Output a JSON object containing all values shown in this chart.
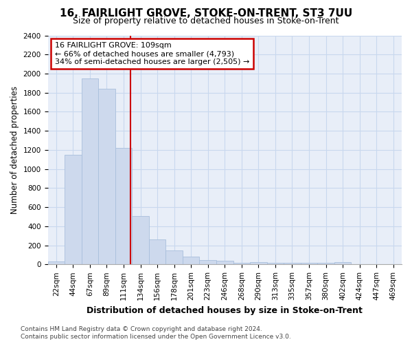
{
  "title": "16, FAIRLIGHT GROVE, STOKE-ON-TRENT, ST3 7UU",
  "subtitle": "Size of property relative to detached houses in Stoke-on-Trent",
  "xlabel": "Distribution of detached houses by size in Stoke-on-Trent",
  "ylabel": "Number of detached properties",
  "bins": [
    "22sqm",
    "44sqm",
    "67sqm",
    "89sqm",
    "111sqm",
    "134sqm",
    "156sqm",
    "178sqm",
    "201sqm",
    "223sqm",
    "246sqm",
    "268sqm",
    "290sqm",
    "313sqm",
    "335sqm",
    "357sqm",
    "380sqm",
    "402sqm",
    "424sqm",
    "447sqm",
    "469sqm"
  ],
  "values": [
    30,
    1150,
    1950,
    1840,
    1220,
    510,
    265,
    150,
    85,
    45,
    40,
    20,
    22,
    20,
    18,
    18,
    16,
    22,
    0,
    0,
    0
  ],
  "bar_color": "#cdd9ed",
  "bar_edge_color": "#a8bfdc",
  "grid_color": "#c8d8ee",
  "background_color": "#e8eef8",
  "annotation_text": "16 FAIRLIGHT GROVE: 109sqm\n← 66% of detached houses are smaller (4,793)\n34% of semi-detached houses are larger (2,505) →",
  "annotation_box_color": "#ffffff",
  "annotation_box_edge": "#cc0000",
  "vline_color": "#cc0000",
  "vline_x": 4.42,
  "footer_line1": "Contains HM Land Registry data © Crown copyright and database right 2024.",
  "footer_line2": "Contains public sector information licensed under the Open Government Licence v3.0.",
  "ylim": [
    0,
    2400
  ],
  "yticks": [
    0,
    200,
    400,
    600,
    800,
    1000,
    1200,
    1400,
    1600,
    1800,
    2000,
    2200,
    2400
  ],
  "title_fontsize": 11,
  "subtitle_fontsize": 9,
  "xlabel_fontsize": 9,
  "ylabel_fontsize": 8.5,
  "tick_fontsize": 7.5,
  "footer_fontsize": 6.5
}
